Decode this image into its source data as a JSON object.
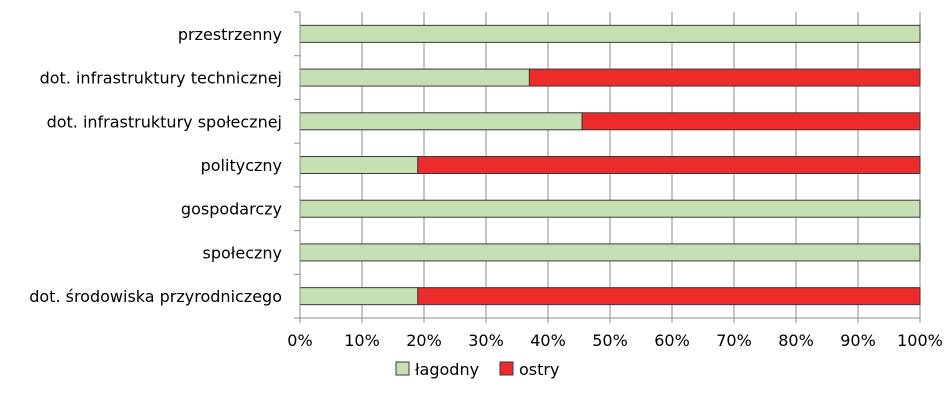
{
  "chart_data": {
    "type": "bar",
    "orientation": "horizontal",
    "stacked": "percent",
    "categories": [
      "przestrzenny",
      "dot. infrastruktury technicznej",
      "dot. infrastruktury społecznej",
      "polityczny",
      "gospodarczy",
      "społeczny",
      "dot. środowiska przyrodniczego"
    ],
    "series": [
      {
        "name": "łagodny",
        "color": "#c6e0b4",
        "values": [
          100,
          37,
          45.5,
          19,
          100,
          100,
          19
        ]
      },
      {
        "name": "ostry",
        "color": "#ee2b2b",
        "values": [
          0,
          63,
          54.5,
          81,
          0,
          0,
          81
        ]
      }
    ],
    "xlim": [
      0,
      100
    ],
    "xticks": [
      "0%",
      "10%",
      "20%",
      "30%",
      "40%",
      "50%",
      "60%",
      "70%",
      "80%",
      "90%",
      "100%"
    ],
    "grid": true,
    "legend": "bottom",
    "title": "",
    "xlabel": "",
    "ylabel": ""
  }
}
